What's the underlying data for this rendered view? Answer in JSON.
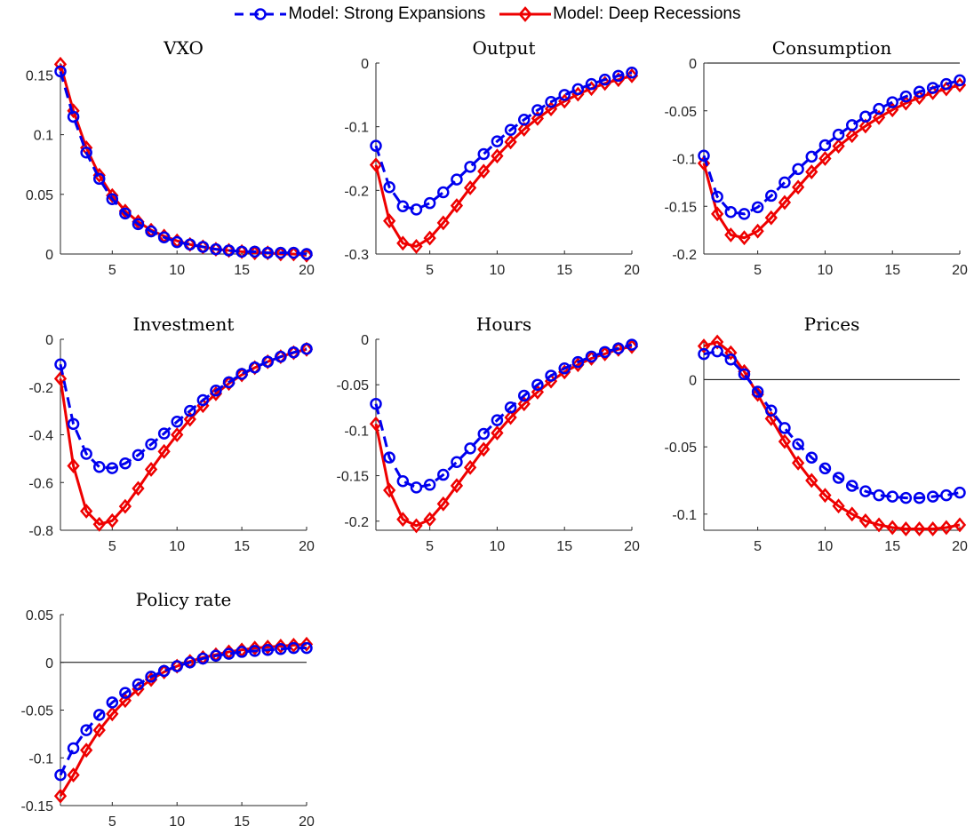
{
  "legend": {
    "strong_label": "Model: Strong Expansions",
    "deep_label": "Model: Deep Recessions",
    "strong_color": "#0000ee",
    "deep_color": "#ee0000"
  },
  "chart_data": [
    {
      "type": "line",
      "title": "VXO",
      "xlabel": "",
      "ylabel": "",
      "xlim": [
        1,
        20
      ],
      "ylim": [
        0,
        0.16
      ],
      "xticks": [
        5,
        10,
        15,
        20
      ],
      "xtick_labels": [
        "5",
        "10",
        "15",
        "20"
      ],
      "yticks": [
        0,
        0.05,
        0.1,
        0.15
      ],
      "ytick_labels": [
        "0",
        "0.05",
        "0.1",
        "0.15"
      ],
      "zero_line": true,
      "x": [
        1,
        2,
        3,
        4,
        5,
        6,
        7,
        8,
        9,
        10,
        11,
        12,
        13,
        14,
        15,
        16,
        17,
        18,
        19,
        20
      ],
      "series": [
        {
          "name": "Model: Strong Expansions",
          "values": [
            0.153,
            0.115,
            0.085,
            0.063,
            0.046,
            0.034,
            0.025,
            0.019,
            0.014,
            0.01,
            0.008,
            0.006,
            0.004,
            0.003,
            0.002,
            0.002,
            0.001,
            0.001,
            0.001,
            0.0
          ]
        },
        {
          "name": "Model: Deep Recessions",
          "values": [
            0.159,
            0.12,
            0.089,
            0.066,
            0.049,
            0.036,
            0.027,
            0.02,
            0.015,
            0.011,
            0.008,
            0.006,
            0.004,
            0.003,
            0.002,
            0.001,
            0.001,
            0.0,
            0.0,
            -0.001
          ]
        }
      ]
    },
    {
      "type": "line",
      "title": "Output",
      "xlabel": "",
      "ylabel": "",
      "xlim": [
        1,
        20
      ],
      "ylim": [
        -0.3,
        0
      ],
      "xticks": [
        5,
        10,
        15,
        20
      ],
      "xtick_labels": [
        "5",
        "10",
        "15",
        "20"
      ],
      "yticks": [
        -0.3,
        -0.2,
        -0.1,
        0
      ],
      "ytick_labels": [
        "-0.3",
        "-0.2",
        "-0.1",
        "0"
      ],
      "zero_line": false,
      "x": [
        1,
        2,
        3,
        4,
        5,
        6,
        7,
        8,
        9,
        10,
        11,
        12,
        13,
        14,
        15,
        16,
        17,
        18,
        19,
        20
      ],
      "series": [
        {
          "name": "Model: Strong Expansions",
          "values": [
            -0.13,
            -0.195,
            -0.225,
            -0.23,
            -0.22,
            -0.203,
            -0.183,
            -0.163,
            -0.143,
            -0.123,
            -0.105,
            -0.089,
            -0.074,
            -0.061,
            -0.05,
            -0.041,
            -0.033,
            -0.026,
            -0.02,
            -0.015
          ]
        },
        {
          "name": "Model: Deep Recessions",
          "values": [
            -0.16,
            -0.248,
            -0.283,
            -0.288,
            -0.275,
            -0.251,
            -0.224,
            -0.196,
            -0.17,
            -0.146,
            -0.124,
            -0.104,
            -0.087,
            -0.072,
            -0.06,
            -0.049,
            -0.04,
            -0.032,
            -0.026,
            -0.02
          ]
        }
      ]
    },
    {
      "type": "line",
      "title": "Consumption",
      "xlabel": "",
      "ylabel": "",
      "xlim": [
        1,
        20
      ],
      "ylim": [
        -0.2,
        0
      ],
      "xticks": [
        5,
        10,
        15,
        20
      ],
      "xtick_labels": [
        "5",
        "10",
        "15",
        "20"
      ],
      "yticks": [
        -0.2,
        -0.15,
        -0.1,
        -0.05,
        0
      ],
      "ytick_labels": [
        "-0.2",
        "-0.15",
        "-0.1",
        "-0.05",
        "0"
      ],
      "zero_line": true,
      "x": [
        1,
        2,
        3,
        4,
        5,
        6,
        7,
        8,
        9,
        10,
        11,
        12,
        13,
        14,
        15,
        16,
        17,
        18,
        19,
        20
      ],
      "series": [
        {
          "name": "Model: Strong Expansions",
          "values": [
            -0.097,
            -0.14,
            -0.156,
            -0.158,
            -0.151,
            -0.139,
            -0.125,
            -0.111,
            -0.098,
            -0.086,
            -0.075,
            -0.065,
            -0.056,
            -0.048,
            -0.041,
            -0.035,
            -0.03,
            -0.026,
            -0.022,
            -0.018
          ]
        },
        {
          "name": "Model: Deep Recessions",
          "values": [
            -0.105,
            -0.158,
            -0.18,
            -0.183,
            -0.176,
            -0.162,
            -0.146,
            -0.13,
            -0.114,
            -0.1,
            -0.087,
            -0.076,
            -0.066,
            -0.057,
            -0.049,
            -0.042,
            -0.036,
            -0.031,
            -0.027,
            -0.023
          ]
        }
      ]
    },
    {
      "type": "line",
      "title": "Investment",
      "xlabel": "",
      "ylabel": "",
      "xlim": [
        1,
        20
      ],
      "ylim": [
        -0.8,
        0
      ],
      "xticks": [
        5,
        10,
        15,
        20
      ],
      "xtick_labels": [
        "5",
        "10",
        "15",
        "20"
      ],
      "yticks": [
        -0.8,
        -0.6,
        -0.4,
        -0.2,
        0
      ],
      "ytick_labels": [
        "-0.8",
        "-0.6",
        "-0.4",
        "-0.2",
        "0"
      ],
      "zero_line": false,
      "x": [
        1,
        2,
        3,
        4,
        5,
        6,
        7,
        8,
        9,
        10,
        11,
        12,
        13,
        14,
        15,
        16,
        17,
        18,
        19,
        20
      ],
      "series": [
        {
          "name": "Model: Strong Expansions",
          "values": [
            -0.105,
            -0.355,
            -0.48,
            -0.535,
            -0.54,
            -0.52,
            -0.485,
            -0.44,
            -0.395,
            -0.345,
            -0.3,
            -0.255,
            -0.215,
            -0.18,
            -0.145,
            -0.118,
            -0.094,
            -0.073,
            -0.055,
            -0.04
          ]
        },
        {
          "name": "Model: Deep Recessions",
          "values": [
            -0.165,
            -0.53,
            -0.72,
            -0.775,
            -0.76,
            -0.7,
            -0.625,
            -0.545,
            -0.47,
            -0.4,
            -0.335,
            -0.278,
            -0.228,
            -0.185,
            -0.149,
            -0.119,
            -0.094,
            -0.073,
            -0.056,
            -0.042
          ]
        }
      ]
    },
    {
      "type": "line",
      "title": "Hours",
      "xlabel": "",
      "ylabel": "",
      "xlim": [
        1,
        20
      ],
      "ylim": [
        -0.21,
        0
      ],
      "xticks": [
        5,
        10,
        15,
        20
      ],
      "xtick_labels": [
        "5",
        "10",
        "15",
        "20"
      ],
      "yticks": [
        -0.2,
        -0.15,
        -0.1,
        -0.05,
        0
      ],
      "ytick_labels": [
        "-0.2",
        "-0.15",
        "-0.1",
        "-0.05",
        "0"
      ],
      "zero_line": false,
      "x": [
        1,
        2,
        3,
        4,
        5,
        6,
        7,
        8,
        9,
        10,
        11,
        12,
        13,
        14,
        15,
        16,
        17,
        18,
        19,
        20
      ],
      "series": [
        {
          "name": "Model: Strong Expansions",
          "values": [
            -0.071,
            -0.13,
            -0.156,
            -0.163,
            -0.16,
            -0.149,
            -0.135,
            -0.12,
            -0.104,
            -0.089,
            -0.075,
            -0.062,
            -0.05,
            -0.04,
            -0.032,
            -0.025,
            -0.019,
            -0.014,
            -0.01,
            -0.006
          ]
        },
        {
          "name": "Model: Deep Recessions",
          "values": [
            -0.093,
            -0.166,
            -0.198,
            -0.205,
            -0.198,
            -0.181,
            -0.161,
            -0.141,
            -0.121,
            -0.103,
            -0.086,
            -0.071,
            -0.058,
            -0.046,
            -0.036,
            -0.028,
            -0.021,
            -0.016,
            -0.011,
            -0.008
          ]
        }
      ]
    },
    {
      "type": "line",
      "title": "Prices",
      "xlabel": "",
      "ylabel": "",
      "xlim": [
        1,
        20
      ],
      "ylim": [
        -0.112,
        0.03
      ],
      "xticks": [
        5,
        10,
        15,
        20
      ],
      "xtick_labels": [
        "5",
        "10",
        "15",
        "20"
      ],
      "yticks": [
        -0.1,
        -0.05,
        0
      ],
      "ytick_labels": [
        "-0.1",
        "-0.05",
        "0"
      ],
      "zero_line": true,
      "x": [
        1,
        2,
        3,
        4,
        5,
        6,
        7,
        8,
        9,
        10,
        11,
        12,
        13,
        14,
        15,
        16,
        17,
        18,
        19,
        20
      ],
      "series": [
        {
          "name": "Model: Strong Expansions",
          "values": [
            0.019,
            0.021,
            0.015,
            0.004,
            -0.009,
            -0.023,
            -0.036,
            -0.048,
            -0.058,
            -0.066,
            -0.073,
            -0.079,
            -0.083,
            -0.086,
            -0.087,
            -0.088,
            -0.088,
            -0.087,
            -0.086,
            -0.084
          ]
        },
        {
          "name": "Model: Deep Recessions",
          "values": [
            0.025,
            0.028,
            0.02,
            0.006,
            -0.011,
            -0.029,
            -0.046,
            -0.062,
            -0.075,
            -0.086,
            -0.094,
            -0.1,
            -0.105,
            -0.108,
            -0.11,
            -0.111,
            -0.111,
            -0.111,
            -0.11,
            -0.108
          ]
        }
      ]
    },
    {
      "type": "line",
      "title": "Policy rate",
      "xlabel": "",
      "ylabel": "",
      "xlim": [
        1,
        20
      ],
      "ylim": [
        -0.15,
        0.05
      ],
      "xticks": [
        5,
        10,
        15,
        20
      ],
      "xtick_labels": [
        "5",
        "10",
        "15",
        "20"
      ],
      "yticks": [
        -0.15,
        -0.1,
        -0.05,
        0,
        0.05
      ],
      "ytick_labels": [
        "-0.15",
        "-0.1",
        "-0.05",
        "0",
        "0.05"
      ],
      "zero_line": true,
      "x": [
        1,
        2,
        3,
        4,
        5,
        6,
        7,
        8,
        9,
        10,
        11,
        12,
        13,
        14,
        15,
        16,
        17,
        18,
        19,
        20
      ],
      "series": [
        {
          "name": "Model: Strong Expansions",
          "values": [
            -0.118,
            -0.09,
            -0.071,
            -0.055,
            -0.042,
            -0.032,
            -0.023,
            -0.015,
            -0.009,
            -0.004,
            0.0,
            0.004,
            0.007,
            0.009,
            0.011,
            0.012,
            0.013,
            0.014,
            0.015,
            0.015
          ]
        },
        {
          "name": "Model: Deep Recessions",
          "values": [
            -0.14,
            -0.118,
            -0.092,
            -0.071,
            -0.054,
            -0.04,
            -0.028,
            -0.018,
            -0.01,
            -0.004,
            0.001,
            0.005,
            0.008,
            0.011,
            0.013,
            0.015,
            0.016,
            0.017,
            0.018,
            0.019
          ]
        }
      ]
    }
  ]
}
